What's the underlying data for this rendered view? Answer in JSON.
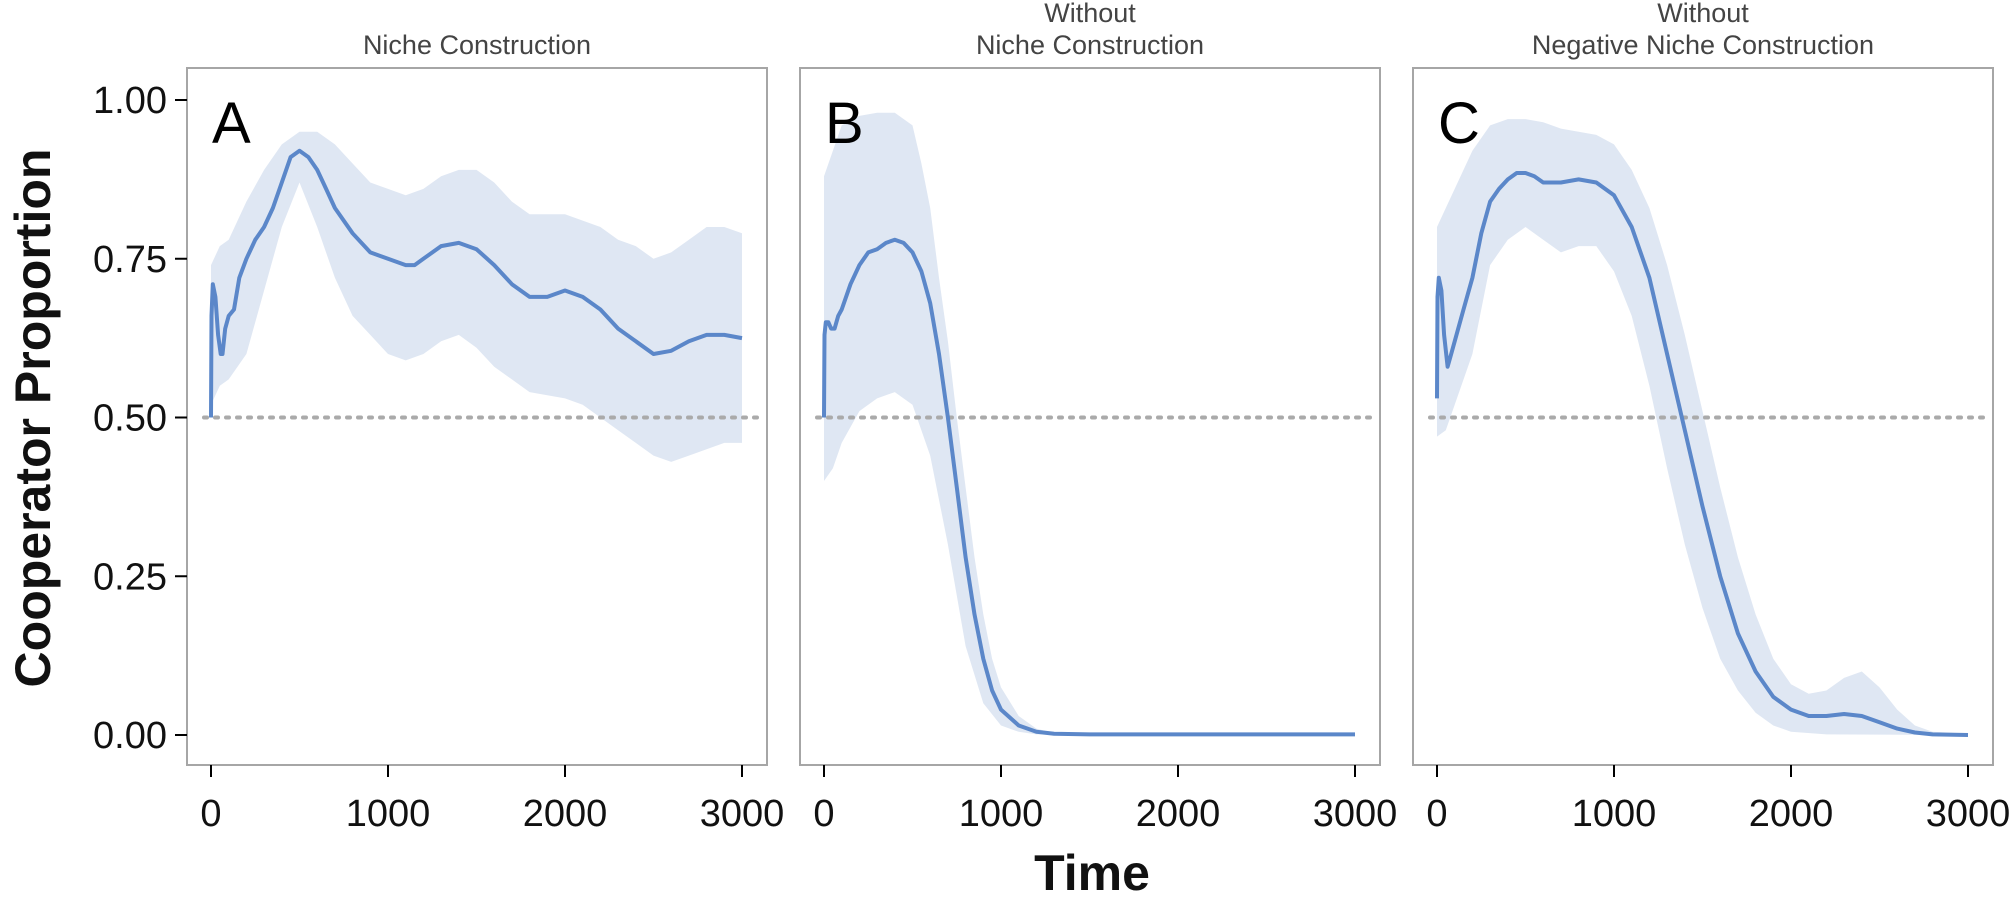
{
  "chart_data": {
    "type": "line",
    "xlabel": "Time",
    "ylabel": "Cooperator Proportion",
    "xlim": [
      0,
      3000
    ],
    "ylim": [
      0,
      1
    ],
    "x_ticks": [
      "0",
      "1000",
      "2000",
      "3000"
    ],
    "y_ticks": [
      "0.00",
      "0.25",
      "0.50",
      "0.75",
      "1.00"
    ],
    "reference_line": {
      "y": 0.5,
      "style": "dotted",
      "color": "#aaaaaa"
    },
    "line_color": "#5b87c9",
    "band_color": "#dfe7f3",
    "grid": false,
    "panels": [
      {
        "title_lines": [
          "Niche Construction"
        ],
        "letter": "A",
        "mean": [
          [
            0,
            0.5
          ],
          [
            3,
            0.66
          ],
          [
            10,
            0.71
          ],
          [
            25,
            0.69
          ],
          [
            40,
            0.63
          ],
          [
            55,
            0.6
          ],
          [
            65,
            0.6
          ],
          [
            80,
            0.64
          ],
          [
            100,
            0.66
          ],
          [
            130,
            0.67
          ],
          [
            160,
            0.72
          ],
          [
            200,
            0.75
          ],
          [
            250,
            0.78
          ],
          [
            300,
            0.8
          ],
          [
            350,
            0.83
          ],
          [
            400,
            0.87
          ],
          [
            450,
            0.91
          ],
          [
            500,
            0.92
          ],
          [
            550,
            0.91
          ],
          [
            600,
            0.89
          ],
          [
            650,
            0.86
          ],
          [
            700,
            0.83
          ],
          [
            800,
            0.79
          ],
          [
            900,
            0.76
          ],
          [
            1000,
            0.75
          ],
          [
            1100,
            0.74
          ],
          [
            1150,
            0.74
          ],
          [
            1200,
            0.75
          ],
          [
            1300,
            0.77
          ],
          [
            1400,
            0.775
          ],
          [
            1500,
            0.765
          ],
          [
            1600,
            0.74
          ],
          [
            1700,
            0.71
          ],
          [
            1800,
            0.69
          ],
          [
            1900,
            0.69
          ],
          [
            2000,
            0.7
          ],
          [
            2100,
            0.69
          ],
          [
            2200,
            0.67
          ],
          [
            2300,
            0.64
          ],
          [
            2400,
            0.62
          ],
          [
            2500,
            0.6
          ],
          [
            2600,
            0.605
          ],
          [
            2700,
            0.62
          ],
          [
            2800,
            0.63
          ],
          [
            2900,
            0.63
          ],
          [
            3000,
            0.625
          ]
        ],
        "lower": [
          [
            0,
            0.52
          ],
          [
            50,
            0.55
          ],
          [
            100,
            0.56
          ],
          [
            200,
            0.6
          ],
          [
            300,
            0.7
          ],
          [
            400,
            0.8
          ],
          [
            500,
            0.87
          ],
          [
            600,
            0.8
          ],
          [
            700,
            0.72
          ],
          [
            800,
            0.66
          ],
          [
            900,
            0.63
          ],
          [
            1000,
            0.6
          ],
          [
            1100,
            0.59
          ],
          [
            1200,
            0.6
          ],
          [
            1300,
            0.62
          ],
          [
            1400,
            0.63
          ],
          [
            1500,
            0.61
          ],
          [
            1600,
            0.58
          ],
          [
            1700,
            0.56
          ],
          [
            1800,
            0.54
          ],
          [
            1900,
            0.535
          ],
          [
            2000,
            0.53
          ],
          [
            2100,
            0.52
          ],
          [
            2200,
            0.5
          ],
          [
            2300,
            0.48
          ],
          [
            2400,
            0.46
          ],
          [
            2500,
            0.44
          ],
          [
            2600,
            0.43
          ],
          [
            2700,
            0.44
          ],
          [
            2800,
            0.45
          ],
          [
            2900,
            0.46
          ],
          [
            3000,
            0.46
          ]
        ],
        "upper": [
          [
            0,
            0.74
          ],
          [
            50,
            0.77
          ],
          [
            100,
            0.78
          ],
          [
            200,
            0.84
          ],
          [
            300,
            0.89
          ],
          [
            400,
            0.93
          ],
          [
            500,
            0.95
          ],
          [
            600,
            0.95
          ],
          [
            700,
            0.93
          ],
          [
            800,
            0.9
          ],
          [
            900,
            0.87
          ],
          [
            1000,
            0.86
          ],
          [
            1100,
            0.85
          ],
          [
            1200,
            0.86
          ],
          [
            1300,
            0.88
          ],
          [
            1400,
            0.89
          ],
          [
            1500,
            0.89
          ],
          [
            1600,
            0.87
          ],
          [
            1700,
            0.84
          ],
          [
            1800,
            0.82
          ],
          [
            1900,
            0.82
          ],
          [
            2000,
            0.82
          ],
          [
            2100,
            0.81
          ],
          [
            2200,
            0.8
          ],
          [
            2300,
            0.78
          ],
          [
            2400,
            0.77
          ],
          [
            2500,
            0.75
          ],
          [
            2600,
            0.76
          ],
          [
            2700,
            0.78
          ],
          [
            2800,
            0.8
          ],
          [
            2900,
            0.8
          ],
          [
            3000,
            0.79
          ]
        ]
      },
      {
        "title_lines": [
          "Without",
          "Niche Construction"
        ],
        "letter": "B",
        "mean": [
          [
            0,
            0.5
          ],
          [
            3,
            0.63
          ],
          [
            10,
            0.65
          ],
          [
            25,
            0.65
          ],
          [
            40,
            0.64
          ],
          [
            60,
            0.64
          ],
          [
            80,
            0.66
          ],
          [
            100,
            0.67
          ],
          [
            150,
            0.71
          ],
          [
            200,
            0.74
          ],
          [
            250,
            0.76
          ],
          [
            300,
            0.765
          ],
          [
            350,
            0.775
          ],
          [
            400,
            0.78
          ],
          [
            450,
            0.775
          ],
          [
            500,
            0.76
          ],
          [
            550,
            0.73
          ],
          [
            600,
            0.68
          ],
          [
            650,
            0.6
          ],
          [
            700,
            0.5
          ],
          [
            750,
            0.39
          ],
          [
            800,
            0.28
          ],
          [
            850,
            0.19
          ],
          [
            900,
            0.12
          ],
          [
            950,
            0.07
          ],
          [
            1000,
            0.04
          ],
          [
            1100,
            0.015
          ],
          [
            1200,
            0.005
          ],
          [
            1300,
            0.002
          ],
          [
            1500,
            0.001
          ],
          [
            2000,
            0.001
          ],
          [
            2500,
            0.001
          ],
          [
            3000,
            0.001
          ]
        ],
        "lower": [
          [
            0,
            0.4
          ],
          [
            50,
            0.42
          ],
          [
            100,
            0.46
          ],
          [
            200,
            0.51
          ],
          [
            300,
            0.53
          ],
          [
            400,
            0.54
          ],
          [
            500,
            0.52
          ],
          [
            600,
            0.44
          ],
          [
            700,
            0.3
          ],
          [
            800,
            0.14
          ],
          [
            900,
            0.05
          ],
          [
            1000,
            0.015
          ],
          [
            1100,
            0.005
          ],
          [
            1200,
            0.001
          ],
          [
            3000,
            0.0
          ]
        ],
        "upper": [
          [
            0,
            0.88
          ],
          [
            50,
            0.92
          ],
          [
            100,
            0.96
          ],
          [
            200,
            0.975
          ],
          [
            300,
            0.98
          ],
          [
            400,
            0.98
          ],
          [
            500,
            0.96
          ],
          [
            550,
            0.9
          ],
          [
            600,
            0.83
          ],
          [
            650,
            0.72
          ],
          [
            700,
            0.62
          ],
          [
            750,
            0.5
          ],
          [
            800,
            0.39
          ],
          [
            850,
            0.28
          ],
          [
            900,
            0.19
          ],
          [
            950,
            0.12
          ],
          [
            1000,
            0.075
          ],
          [
            1100,
            0.03
          ],
          [
            1200,
            0.01
          ],
          [
            1300,
            0.003
          ],
          [
            3000,
            0.002
          ]
        ]
      },
      {
        "title_lines": [
          "Without",
          "Negative Niche Construction"
        ],
        "letter": "C",
        "mean": [
          [
            0,
            0.53
          ],
          [
            3,
            0.69
          ],
          [
            10,
            0.72
          ],
          [
            25,
            0.7
          ],
          [
            40,
            0.63
          ],
          [
            60,
            0.58
          ],
          [
            80,
            0.6
          ],
          [
            100,
            0.62
          ],
          [
            150,
            0.67
          ],
          [
            200,
            0.72
          ],
          [
            250,
            0.79
          ],
          [
            300,
            0.84
          ],
          [
            350,
            0.86
          ],
          [
            400,
            0.875
          ],
          [
            450,
            0.885
          ],
          [
            500,
            0.885
          ],
          [
            550,
            0.88
          ],
          [
            600,
            0.87
          ],
          [
            700,
            0.87
          ],
          [
            800,
            0.875
          ],
          [
            900,
            0.87
          ],
          [
            1000,
            0.85
          ],
          [
            1100,
            0.8
          ],
          [
            1200,
            0.72
          ],
          [
            1300,
            0.6
          ],
          [
            1400,
            0.48
          ],
          [
            1500,
            0.36
          ],
          [
            1600,
            0.25
          ],
          [
            1700,
            0.16
          ],
          [
            1800,
            0.1
          ],
          [
            1900,
            0.06
          ],
          [
            2000,
            0.04
          ],
          [
            2100,
            0.03
          ],
          [
            2200,
            0.03
          ],
          [
            2300,
            0.033
          ],
          [
            2400,
            0.03
          ],
          [
            2500,
            0.02
          ],
          [
            2600,
            0.01
          ],
          [
            2700,
            0.004
          ],
          [
            2800,
            0.001
          ],
          [
            3000,
            0.0
          ]
        ],
        "lower": [
          [
            0,
            0.47
          ],
          [
            50,
            0.48
          ],
          [
            100,
            0.52
          ],
          [
            200,
            0.6
          ],
          [
            300,
            0.74
          ],
          [
            400,
            0.78
          ],
          [
            500,
            0.8
          ],
          [
            600,
            0.78
          ],
          [
            700,
            0.76
          ],
          [
            800,
            0.77
          ],
          [
            900,
            0.77
          ],
          [
            1000,
            0.73
          ],
          [
            1100,
            0.66
          ],
          [
            1200,
            0.55
          ],
          [
            1300,
            0.42
          ],
          [
            1400,
            0.3
          ],
          [
            1500,
            0.2
          ],
          [
            1600,
            0.12
          ],
          [
            1700,
            0.07
          ],
          [
            1800,
            0.035
          ],
          [
            1900,
            0.015
          ],
          [
            2000,
            0.005
          ],
          [
            2200,
            0.001
          ],
          [
            3000,
            0.0
          ]
        ],
        "upper": [
          [
            0,
            0.8
          ],
          [
            50,
            0.83
          ],
          [
            100,
            0.86
          ],
          [
            200,
            0.92
          ],
          [
            300,
            0.96
          ],
          [
            400,
            0.97
          ],
          [
            500,
            0.97
          ],
          [
            600,
            0.965
          ],
          [
            700,
            0.955
          ],
          [
            800,
            0.95
          ],
          [
            900,
            0.945
          ],
          [
            1000,
            0.93
          ],
          [
            1100,
            0.89
          ],
          [
            1200,
            0.83
          ],
          [
            1300,
            0.74
          ],
          [
            1400,
            0.63
          ],
          [
            1500,
            0.51
          ],
          [
            1600,
            0.39
          ],
          [
            1700,
            0.28
          ],
          [
            1800,
            0.19
          ],
          [
            1900,
            0.12
          ],
          [
            2000,
            0.08
          ],
          [
            2100,
            0.065
          ],
          [
            2200,
            0.07
          ],
          [
            2300,
            0.09
          ],
          [
            2400,
            0.1
          ],
          [
            2500,
            0.075
          ],
          [
            2600,
            0.04
          ],
          [
            2700,
            0.015
          ],
          [
            2800,
            0.005
          ],
          [
            3000,
            0.002
          ]
        ]
      }
    ]
  }
}
